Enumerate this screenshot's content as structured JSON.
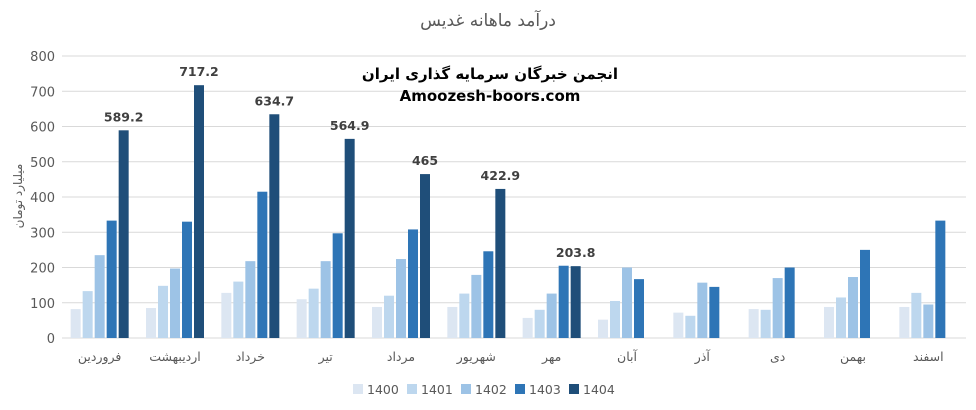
{
  "chart_data": {
    "type": "bar",
    "title": "درآمد ماهانه غدیس",
    "ylabel": "میلیارد تومان",
    "xlabel": "",
    "ylim": [
      0,
      800
    ],
    "yticks": [
      0,
      100,
      200,
      300,
      400,
      500,
      600,
      700,
      800
    ],
    "grid": true,
    "legend_position": "bottom",
    "categories": [
      "فروردین",
      "اردیبهشت",
      "خرداد",
      "تیر",
      "مرداد",
      "شهریور",
      "مهر",
      "آبان",
      "آذر",
      "دی",
      "بهمن",
      "اسفند"
    ],
    "series": [
      {
        "name": "1400",
        "color": "#dce6f2",
        "values": [
          82,
          85,
          128,
          110,
          88,
          88,
          57,
          52,
          72,
          82,
          88,
          88
        ]
      },
      {
        "name": "1401",
        "color": "#bdd7ee",
        "values": [
          133,
          148,
          160,
          140,
          120,
          126,
          80,
          105,
          63,
          80,
          115,
          128
        ]
      },
      {
        "name": "1402",
        "color": "#9dc3e6",
        "values": [
          235,
          197,
          218,
          218,
          224,
          179,
          126,
          200,
          157,
          170,
          173,
          95
        ]
      },
      {
        "name": "1403",
        "color": "#2e75b6",
        "values": [
          333,
          330,
          415,
          297,
          308,
          246,
          205,
          167,
          145,
          200,
          250,
          333
        ]
      },
      {
        "name": "1404",
        "color": "#1f4e79",
        "values": [
          589.2,
          717.2,
          634.7,
          564.9,
          465,
          422.9,
          203.8,
          null,
          null,
          null,
          null,
          null
        ]
      }
    ],
    "data_labels": [
      "589.2",
      "717.2",
      "634.7",
      "564.9",
      "465",
      "422.9",
      "203.8"
    ]
  },
  "watermark": {
    "line1": "انجمن خبرگان سرمایه گذاری ایران",
    "line2": "Amoozesh-boors.com"
  }
}
